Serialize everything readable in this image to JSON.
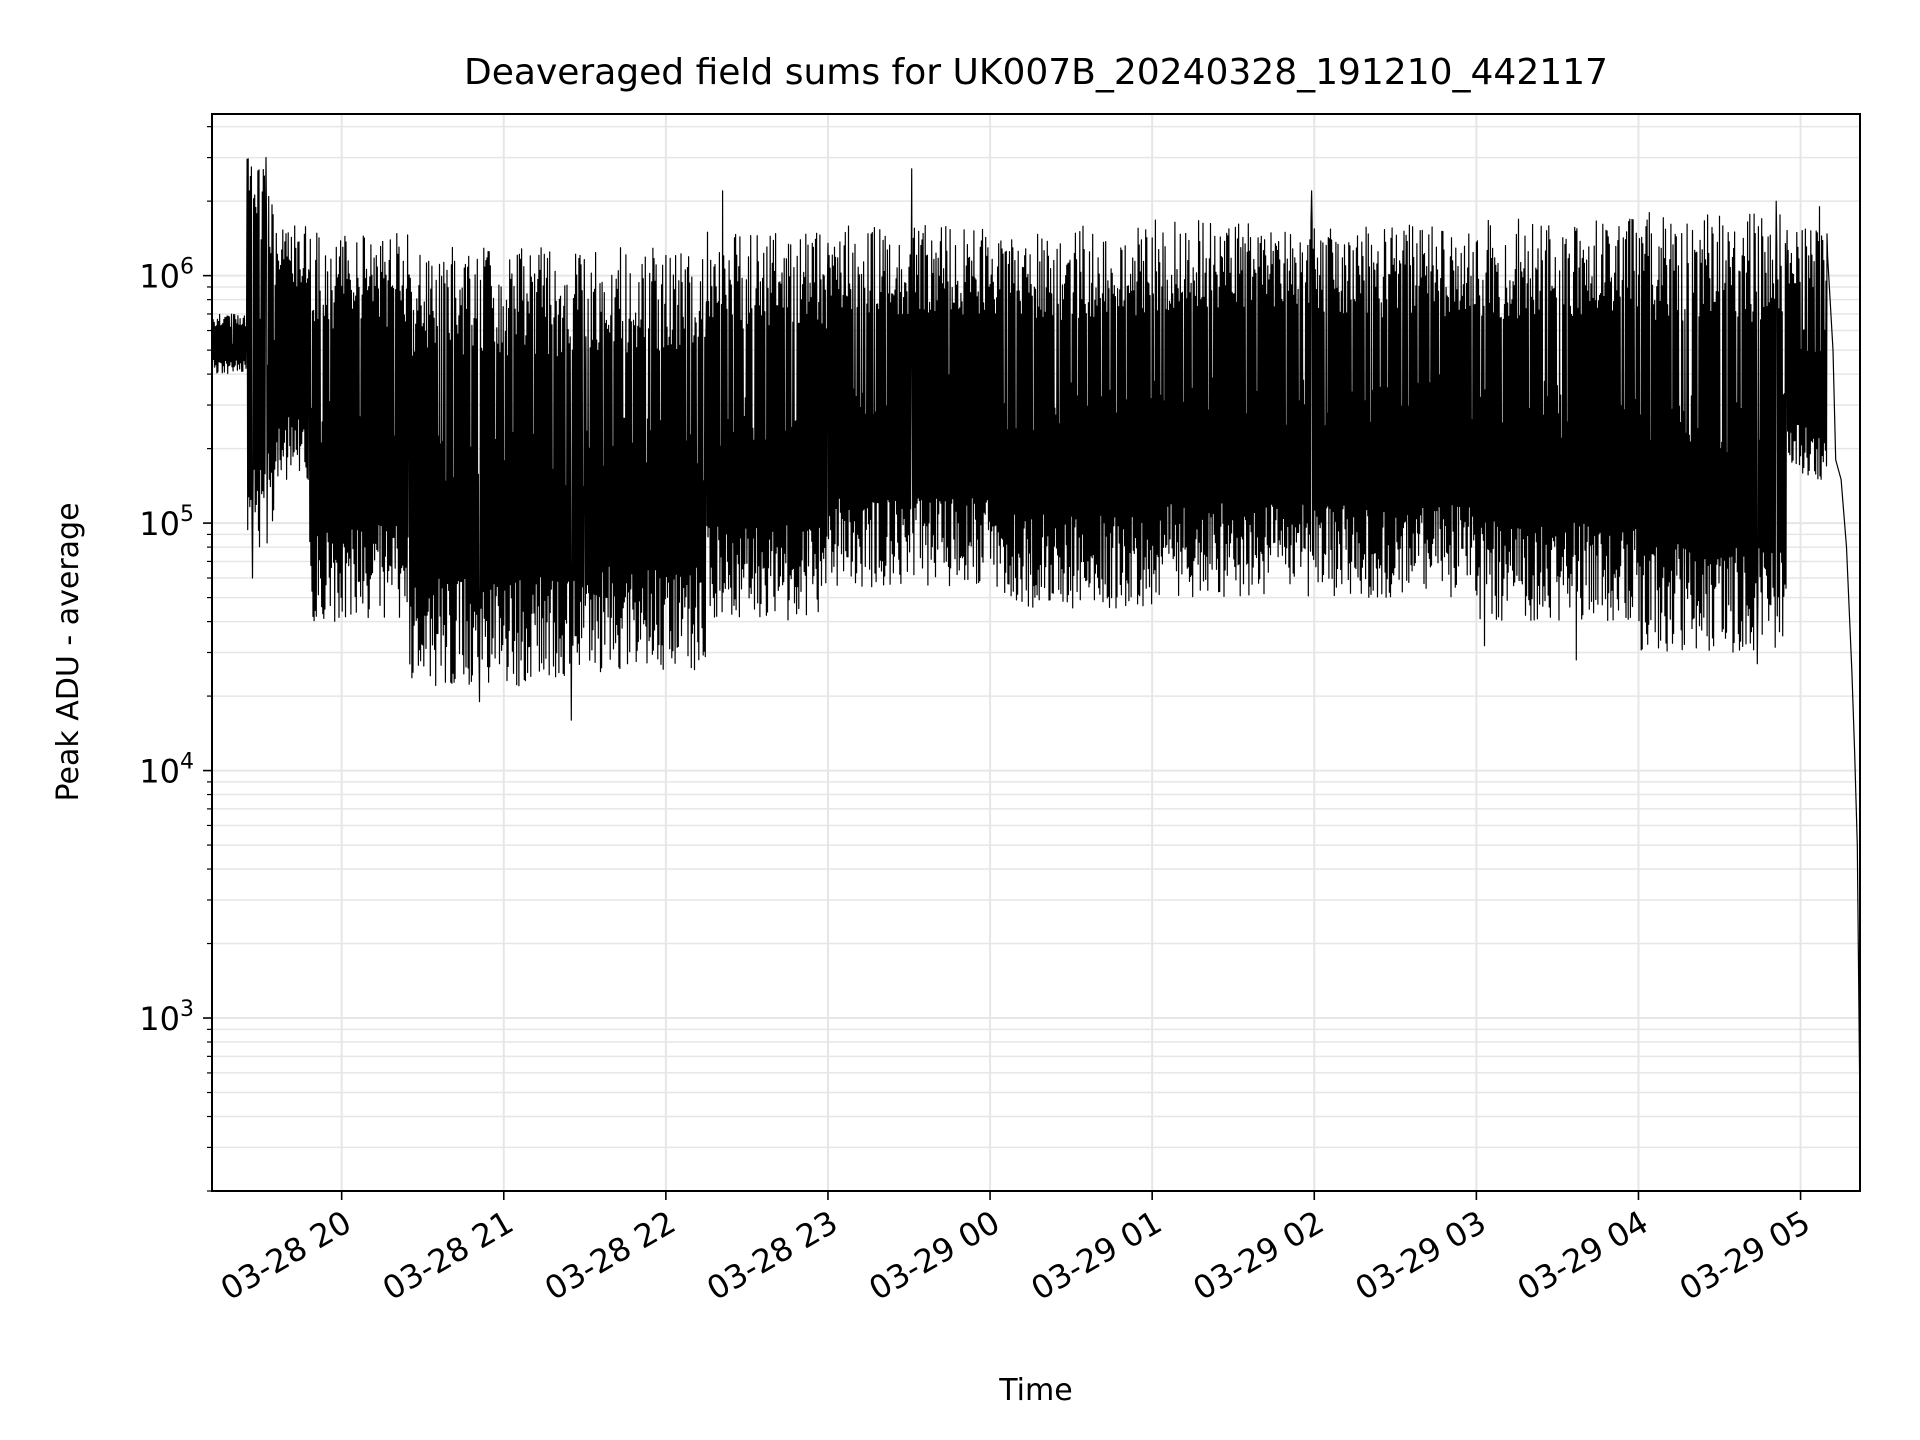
{
  "chart_data": {
    "type": "line",
    "title": "Deaveraged field sums for UK007B_20240328_191210_442117",
    "xlabel": "Time",
    "ylabel": "Peak ADU - average",
    "yscale": "log",
    "ylim": [
      200,
      4500000
    ],
    "xlim": [
      "2024-03-28 19:12",
      "2024-03-29 05:22"
    ],
    "grid": true,
    "line_color": "#000000",
    "grid_color": "#e6e6e6",
    "x_ticks": [
      {
        "value": "2024-03-28 20:00",
        "label": "03-28 20"
      },
      {
        "value": "2024-03-28 21:00",
        "label": "03-28 21"
      },
      {
        "value": "2024-03-28 22:00",
        "label": "03-28 22"
      },
      {
        "value": "2024-03-28 23:00",
        "label": "03-28 23"
      },
      {
        "value": "2024-03-29 00:00",
        "label": "03-29 00"
      },
      {
        "value": "2024-03-29 01:00",
        "label": "03-29 01"
      },
      {
        "value": "2024-03-29 02:00",
        "label": "03-29 02"
      },
      {
        "value": "2024-03-29 03:00",
        "label": "03-29 03"
      },
      {
        "value": "2024-03-29 04:00",
        "label": "03-29 04"
      },
      {
        "value": "2024-03-29 05:00",
        "label": "03-29 05"
      }
    ],
    "y_ticks": [
      {
        "value": 1000,
        "base": "10",
        "exp": "3"
      },
      {
        "value": 10000,
        "base": "10",
        "exp": "4"
      },
      {
        "value": 100000,
        "base": "10",
        "exp": "5"
      },
      {
        "value": 1000000,
        "base": "10",
        "exp": "6"
      }
    ],
    "segments": [
      {
        "start": "2024-03-28 19:12",
        "end": "2024-03-28 19:25",
        "low": 400000,
        "high": 700000
      },
      {
        "start": "2024-03-28 19:25",
        "end": "2024-03-28 19:35",
        "low": 80000,
        "high": 3000000
      },
      {
        "start": "2024-03-28 19:35",
        "end": "2024-03-28 19:48",
        "low": 150000,
        "high": 1600000
      },
      {
        "start": "2024-03-28 19:48",
        "end": "2024-03-28 20:25",
        "low": 40000,
        "high": 1500000
      },
      {
        "start": "2024-03-28 20:25",
        "end": "2024-03-28 21:30",
        "low": 22000,
        "high": 1300000
      },
      {
        "start": "2024-03-28 21:30",
        "end": "2024-03-28 22:15",
        "low": 25000,
        "high": 1300000
      },
      {
        "start": "2024-03-28 22:15",
        "end": "2024-03-28 23:00",
        "low": 40000,
        "high": 1500000
      },
      {
        "start": "2024-03-28 23:00",
        "end": "2024-03-29 00:00",
        "low": 55000,
        "high": 1600000
      },
      {
        "start": "2024-03-29 00:00",
        "end": "2024-03-29 01:00",
        "low": 45000,
        "high": 1600000
      },
      {
        "start": "2024-03-29 01:00",
        "end": "2024-03-29 02:00",
        "low": 50000,
        "high": 1700000
      },
      {
        "start": "2024-03-29 02:00",
        "end": "2024-03-29 03:00",
        "low": 50000,
        "high": 1600000
      },
      {
        "start": "2024-03-29 03:00",
        "end": "2024-03-29 04:00",
        "low": 40000,
        "high": 1700000
      },
      {
        "start": "2024-03-29 04:00",
        "end": "2024-03-29 04:55",
        "low": 30000,
        "high": 1800000
      },
      {
        "start": "2024-03-29 04:55",
        "end": "2024-03-29 05:10",
        "low": 150000,
        "high": 1600000
      }
    ],
    "spikes": [
      {
        "time": "2024-03-28 19:32",
        "value": 3000000
      },
      {
        "time": "2024-03-28 19:27",
        "value": 60000
      },
      {
        "time": "2024-03-28 20:51",
        "value": 19000
      },
      {
        "time": "2024-03-28 21:25",
        "value": 16000
      },
      {
        "time": "2024-03-28 22:21",
        "value": 2200000
      },
      {
        "time": "2024-03-28 23:31",
        "value": 2700000
      },
      {
        "time": "2024-03-29 01:59",
        "value": 2200000
      },
      {
        "time": "2024-03-29 03:03",
        "value": 32000
      },
      {
        "time": "2024-03-29 03:37",
        "value": 28000
      },
      {
        "time": "2024-03-29 04:44",
        "value": 27000
      },
      {
        "time": "2024-03-29 04:51",
        "value": 2000000
      },
      {
        "time": "2024-03-29 05:07",
        "value": 1900000
      }
    ],
    "tail": [
      {
        "time": "2024-03-29 05:10",
        "value": 1200000
      },
      {
        "time": "2024-03-29 05:12",
        "value": 500000
      },
      {
        "time": "2024-03-29 05:13",
        "value": 180000
      },
      {
        "time": "2024-03-29 05:15",
        "value": 150000
      },
      {
        "time": "2024-03-29 05:17",
        "value": 80000
      },
      {
        "time": "2024-03-29 05:19",
        "value": 25000
      },
      {
        "time": "2024-03-29 05:20",
        "value": 12000
      },
      {
        "time": "2024-03-29 05:21",
        "value": 5000
      },
      {
        "time": "2024-03-29 05:22",
        "value": 400
      }
    ]
  }
}
